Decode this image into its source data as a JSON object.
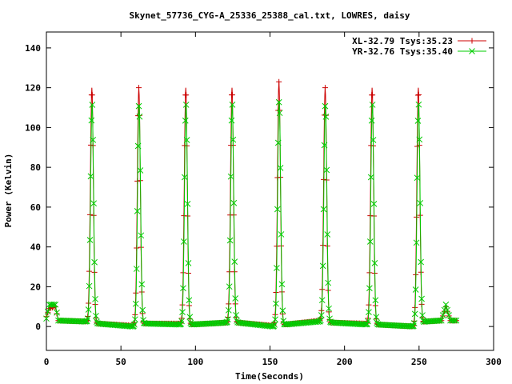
{
  "chart_data": {
    "type": "line",
    "title": "Skynet_57736_CYG-A_25336_25388_cal.txt, LOWRES, daisy",
    "xlabel": "Time(Seconds)",
    "ylabel": "Power (Kelvin)",
    "xlim": [
      0,
      300
    ],
    "ylim": [
      -12,
      148
    ],
    "xticks": [
      0,
      50,
      100,
      150,
      200,
      250,
      300
    ],
    "yticks": [
      0,
      20,
      40,
      60,
      80,
      100,
      120,
      140
    ],
    "grid": false,
    "legend_position": "top-right",
    "series": [
      {
        "name": "XL-32.79 Tsys:35.23",
        "color": "#cc0000",
        "marker": "plus",
        "baseline": [
          [
            0,
            5
          ],
          [
            2,
            9
          ],
          [
            6,
            10
          ],
          [
            8,
            3
          ],
          [
            27,
            2.5
          ],
          [
            34,
            1.5
          ],
          [
            58,
            0.5
          ],
          [
            66,
            1.5
          ],
          [
            90,
            1.5
          ],
          [
            97,
            1
          ],
          [
            122,
            2
          ],
          [
            128,
            2
          ],
          [
            152,
            0.5
          ],
          [
            160,
            1
          ],
          [
            183,
            3
          ],
          [
            191,
            2
          ],
          [
            215,
            1.5
          ],
          [
            222,
            1
          ],
          [
            247,
            0
          ],
          [
            254,
            2.5
          ],
          [
            265,
            3
          ],
          [
            268,
            10
          ],
          [
            271,
            3
          ],
          [
            275,
            3
          ]
        ],
        "peaks": [
          {
            "center": 30.5,
            "peak": 120
          },
          {
            "center": 62.0,
            "peak": 120
          },
          {
            "center": 93.5,
            "peak": 120
          },
          {
            "center": 124.5,
            "peak": 120
          },
          {
            "center": 156.0,
            "peak": 123
          },
          {
            "center": 187.0,
            "peak": 120
          },
          {
            "center": 218.5,
            "peak": 120
          },
          {
            "center": 249.5,
            "peak": 120
          }
        ]
      },
      {
        "name": "YR-32.76 Tsys:35.40",
        "color": "#00cc00",
        "marker": "cross",
        "baseline": [
          [
            0,
            4
          ],
          [
            2,
            11
          ],
          [
            6,
            11
          ],
          [
            8,
            3
          ],
          [
            27,
            2.5
          ],
          [
            34,
            1.5
          ],
          [
            58,
            0
          ],
          [
            66,
            1.5
          ],
          [
            90,
            1
          ],
          [
            97,
            1
          ],
          [
            122,
            2
          ],
          [
            128,
            2
          ],
          [
            152,
            0
          ],
          [
            160,
            1
          ],
          [
            183,
            2.5
          ],
          [
            191,
            2
          ],
          [
            215,
            1
          ],
          [
            222,
            1
          ],
          [
            247,
            0
          ],
          [
            254,
            2.5
          ],
          [
            265,
            3
          ],
          [
            268,
            11
          ],
          [
            271,
            3
          ],
          [
            275,
            3
          ]
        ],
        "peaks": [
          {
            "center": 30.5,
            "peak": 112
          },
          {
            "center": 62.0,
            "peak": 112
          },
          {
            "center": 93.5,
            "peak": 112
          },
          {
            "center": 124.5,
            "peak": 112
          },
          {
            "center": 156.0,
            "peak": 114
          },
          {
            "center": 187.0,
            "peak": 112
          },
          {
            "center": 218.5,
            "peak": 112
          },
          {
            "center": 249.5,
            "peak": 112
          }
        ]
      }
    ]
  }
}
